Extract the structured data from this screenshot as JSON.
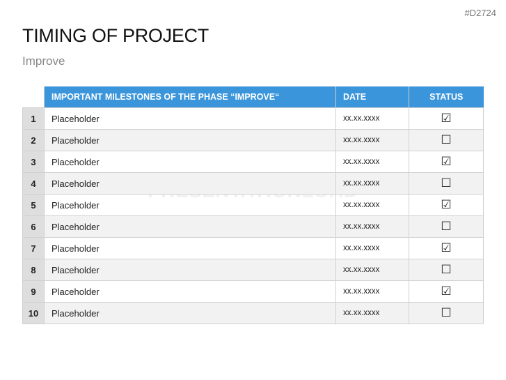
{
  "code": "#D2724",
  "title": "TIMING OF PROJECT",
  "subtitle": "Improve",
  "watermark": "PRESENTATIONLOAD",
  "table": {
    "headers": [
      "IMPORTANT MILESTONES OF THE PHASE “IMPROVE“",
      "DATE",
      "STATUS"
    ],
    "header_color": "#3a95db",
    "rows": [
      {
        "num": "1",
        "text": "Placeholder",
        "date": "xx.xx.xxxx",
        "status": "☑"
      },
      {
        "num": "2",
        "text": "Placeholder",
        "date": "xx.xx.xxxx",
        "status": "☐"
      },
      {
        "num": "3",
        "text": "Placeholder",
        "date": "xx.xx.xxxx",
        "status": "☑"
      },
      {
        "num": "4",
        "text": "Placeholder",
        "date": "xx.xx.xxxx",
        "status": "☐"
      },
      {
        "num": "5",
        "text": "Placeholder",
        "date": "xx.xx.xxxx",
        "status": "☑"
      },
      {
        "num": "6",
        "text": "Placeholder",
        "date": "xx.xx.xxxx",
        "status": "☐"
      },
      {
        "num": "7",
        "text": "Placeholder",
        "date": "xx.xx.xxxx",
        "status": "☑"
      },
      {
        "num": "8",
        "text": "Placeholder",
        "date": "xx.xx.xxxx",
        "status": "☐"
      },
      {
        "num": "9",
        "text": "Placeholder",
        "date": "xx.xx.xxxx",
        "status": "☑"
      },
      {
        "num": "10",
        "text": "Placeholder",
        "date": "xx.xx.xxxx",
        "status": "☐"
      }
    ]
  }
}
